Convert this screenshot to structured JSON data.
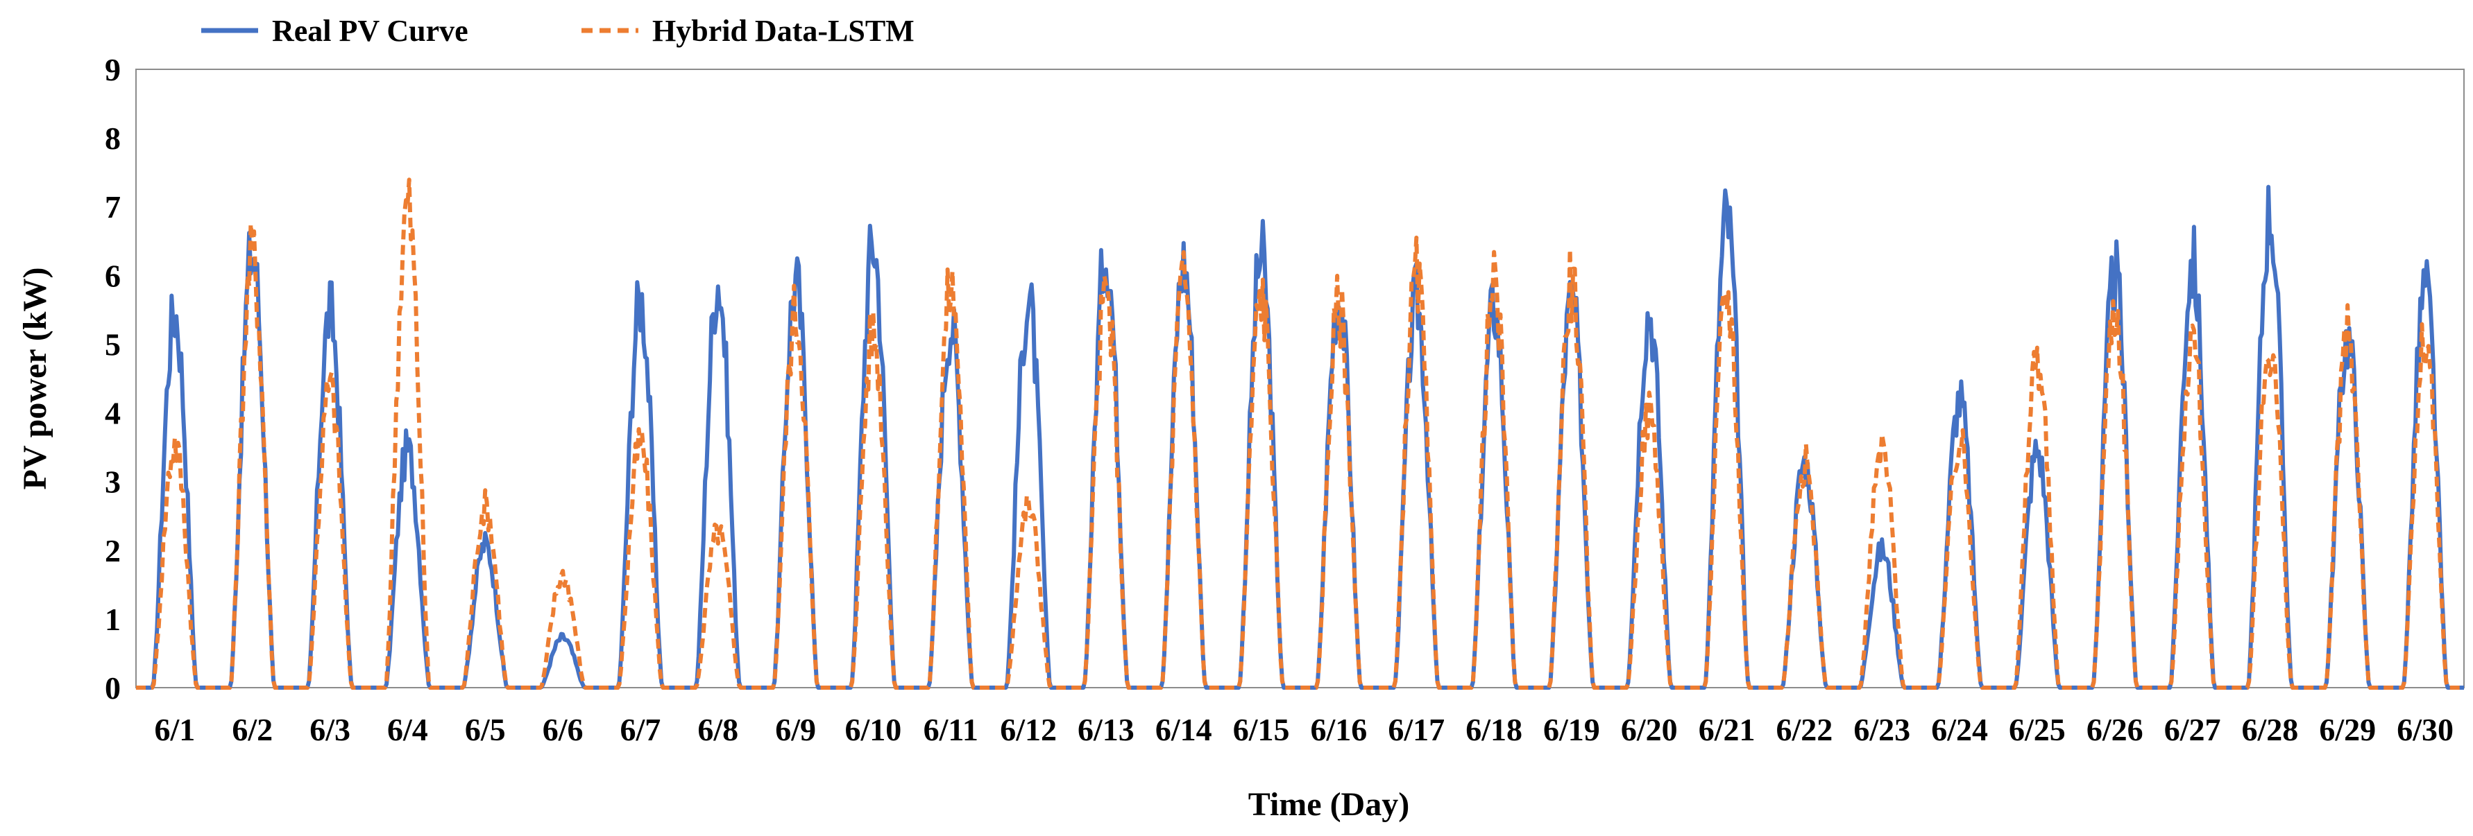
{
  "chart_data": {
    "type": "line",
    "title": "",
    "xlabel": "Time (Day)",
    "ylabel": "PV power (kW)",
    "ylim": [
      0,
      9
    ],
    "yticks": [
      0,
      1,
      2,
      3,
      4,
      5,
      6,
      7,
      8,
      9
    ],
    "grid": false,
    "legend_position": "top-left",
    "categories": [
      "6/1",
      "6/2",
      "6/3",
      "6/4",
      "6/5",
      "6/6",
      "6/7",
      "6/8",
      "6/9",
      "6/10",
      "6/11",
      "6/12",
      "6/13",
      "6/14",
      "6/15",
      "6/16",
      "6/17",
      "6/18",
      "6/19",
      "6/20",
      "6/21",
      "6/22",
      "6/23",
      "6/24",
      "6/25",
      "6/26",
      "6/27",
      "6/28",
      "6/29",
      "6/30"
    ],
    "series": [
      {
        "name": "Real PV Curve",
        "color": "#4472C4",
        "style": "solid",
        "daily_peak": [
          6.0,
          7.0,
          6.0,
          3.8,
          2.3,
          0.8,
          6.2,
          6.5,
          6.5,
          7.1,
          5.8,
          6.2,
          7.0,
          6.8,
          6.9,
          6.3,
          6.2,
          6.1,
          6.2,
          6.0,
          7.5,
          3.6,
          2.2,
          4.6,
          3.8,
          6.6,
          6.8,
          7.6,
          5.6,
          6.4
        ]
      },
      {
        "name": "Hybrid Data-LSTM",
        "color": "#ED7D31",
        "style": "dashed",
        "daily_peak": [
          3.9,
          6.9,
          4.8,
          7.7,
          2.9,
          1.8,
          3.9,
          2.5,
          6.0,
          5.7,
          6.4,
          2.9,
          6.3,
          6.5,
          6.3,
          6.1,
          6.6,
          6.4,
          6.5,
          4.4,
          6.3,
          3.6,
          3.8,
          3.9,
          5.3,
          6.1,
          5.6,
          5.5,
          5.6,
          5.5
        ]
      }
    ]
  }
}
